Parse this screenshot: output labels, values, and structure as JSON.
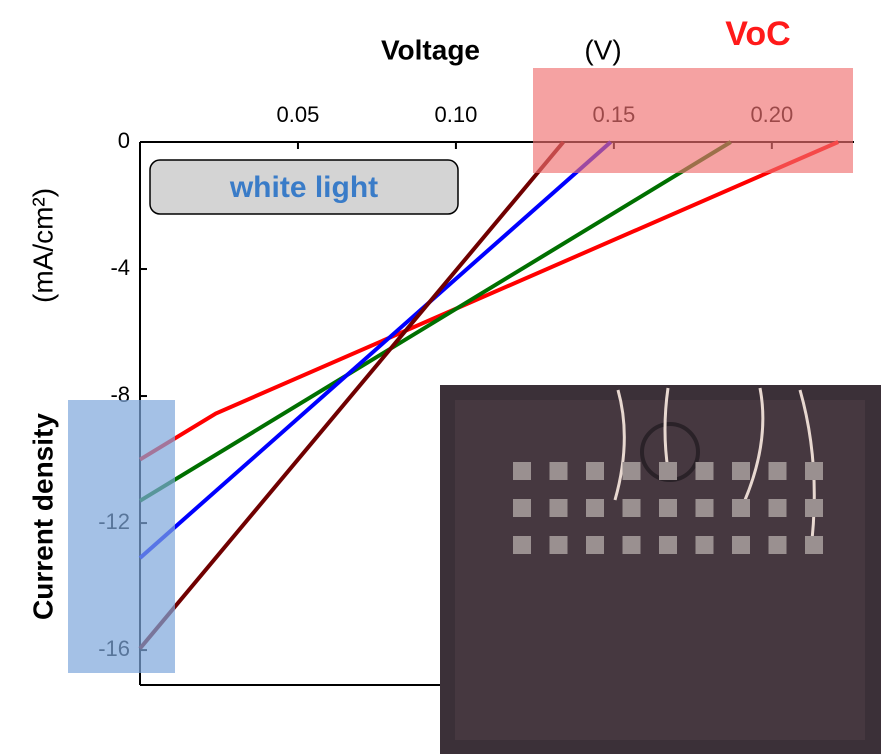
{
  "chart_data": {
    "type": "line",
    "xlabel": "Voltage",
    "xlabel_unit": "(V)",
    "ylabel": "Current density",
    "ylabel_unit": "(mA/cm²)",
    "annotations": {
      "voc": "VoC",
      "light": "white light"
    },
    "xlim": [
      0,
      0.226
    ],
    "ylim": [
      -17.1,
      0
    ],
    "xticks": [
      0.05,
      {
        "value": 0.1,
        "label": "0.10"
      },
      0.15,
      {
        "value": 0.2,
        "label": "0.20"
      }
    ],
    "yticks": [
      0,
      -4,
      -8,
      -12,
      -16
    ],
    "series": [
      {
        "color": "#ff0000",
        "x": [
          0,
          0.024,
          0.221
        ],
        "values": [
          -10,
          -8.55,
          0
        ]
      },
      {
        "color": "#007000",
        "x": [
          0,
          0.187
        ],
        "values": [
          -11.3,
          0
        ]
      },
      {
        "color": "#0000ff",
        "x": [
          0,
          0.149
        ],
        "values": [
          -13.1,
          0
        ]
      },
      {
        "color": "#700000",
        "x": [
          0,
          0.134
        ],
        "values": [
          -15.95,
          0
        ]
      }
    ]
  }
}
